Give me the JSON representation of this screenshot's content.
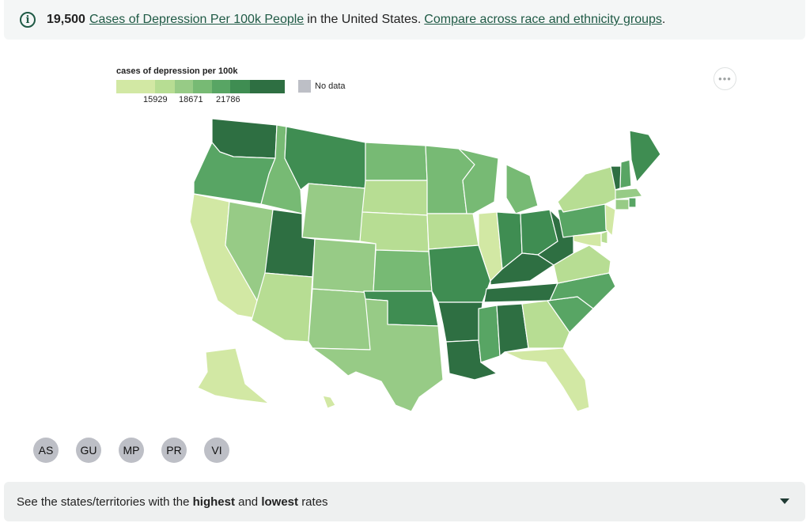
{
  "summary": {
    "value": "19,500",
    "metric_link": "Cases of Depression Per 100k People",
    "location_text": "in the United States.",
    "compare_link": "Compare across race and ethnicity groups",
    "end": "."
  },
  "legend": {
    "title": "cases of depression per 100k",
    "ticks": [
      "15929",
      "18671",
      "21786"
    ],
    "no_data_label": "No data",
    "colors": [
      "#d2e8a4",
      "#b7dd93",
      "#97cb86",
      "#77ba74",
      "#58a564",
      "#3f8d52",
      "#2e6f42"
    ],
    "no_data_color": "#bdbfc6"
  },
  "more_button": {
    "label": "•••"
  },
  "territories": [
    "AS",
    "GU",
    "MP",
    "PR",
    "VI"
  ],
  "bottom_bar": {
    "prefix": "See the states/territories with the",
    "highest": "highest",
    "and": "and",
    "lowest": "lowest",
    "suffix": "rates"
  },
  "chart_data": {
    "type": "choropleth",
    "title": "cases of depression per 100k",
    "legend_ticks": [
      15929,
      18671,
      21786
    ],
    "bin_levels": "0 = lightest … 6 = darkest",
    "states": {
      "WA": 6,
      "OR": 4,
      "CA": 0,
      "NV": 2,
      "ID": 3,
      "MT": 5,
      "WY": 2,
      "UT": 6,
      "AZ": 1,
      "NM": 2,
      "CO": 2,
      "ND": 3,
      "SD": 1,
      "NE": 1,
      "KS": 3,
      "OK": 5,
      "TX": 2,
      "MN": 3,
      "IA": 1,
      "MO": 5,
      "AR": 6,
      "LA": 6,
      "WI": 3,
      "IL": 0,
      "MS": 4,
      "MI": 3,
      "IN": 5,
      "OH": 5,
      "KY": 6,
      "TN": 6,
      "AL": 6,
      "GA": 1,
      "FL": 0,
      "SC": 4,
      "NC": 4,
      "VA": 1,
      "WV": 6,
      "PA": 4,
      "NY": 1,
      "NJ": 0,
      "DE": 1,
      "MD": 0,
      "ME": 5,
      "VT": 6,
      "NH": 4,
      "MA": 2,
      "CT": 2,
      "RI": 4,
      "AK": 0,
      "HI": 0
    }
  }
}
